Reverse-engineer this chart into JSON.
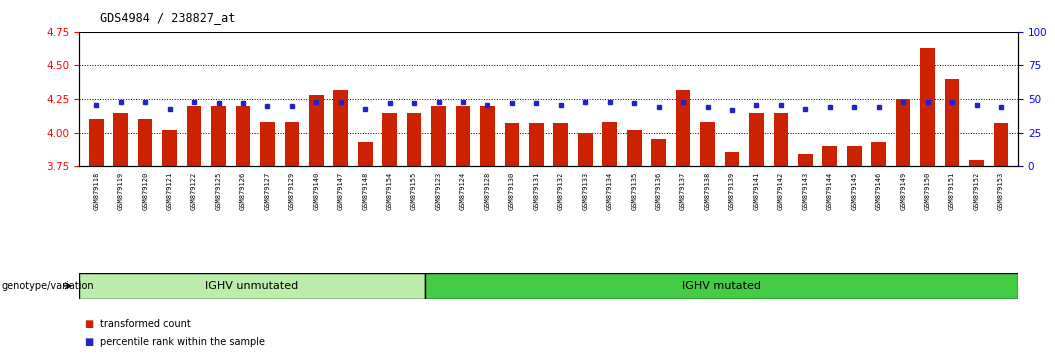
{
  "title": "GDS4984 / 238827_at",
  "samples": [
    "GSM879118",
    "GSM879119",
    "GSM879120",
    "GSM879121",
    "GSM879122",
    "GSM879125",
    "GSM879126",
    "GSM879127",
    "GSM879129",
    "GSM879140",
    "GSM879147",
    "GSM879148",
    "GSM879154",
    "GSM879155",
    "GSM879123",
    "GSM879124",
    "GSM879128",
    "GSM879130",
    "GSM879131",
    "GSM879132",
    "GSM879133",
    "GSM879134",
    "GSM879135",
    "GSM879136",
    "GSM879137",
    "GSM879138",
    "GSM879139",
    "GSM879141",
    "GSM879142",
    "GSM879143",
    "GSM879144",
    "GSM879145",
    "GSM879146",
    "GSM879149",
    "GSM879150",
    "GSM879151",
    "GSM879152",
    "GSM879153"
  ],
  "bar_values": [
    4.1,
    4.15,
    4.1,
    4.02,
    4.2,
    4.2,
    4.2,
    4.08,
    4.08,
    4.28,
    4.32,
    3.93,
    4.15,
    4.15,
    4.2,
    4.2,
    4.2,
    4.07,
    4.07,
    4.07,
    4.0,
    4.08,
    4.02,
    3.95,
    4.32,
    4.08,
    3.86,
    4.15,
    4.15,
    3.84,
    3.9,
    3.9,
    3.93,
    4.25,
    4.63,
    4.4,
    3.8,
    4.07
  ],
  "dot_values": [
    46,
    48,
    48,
    43,
    48,
    47,
    47,
    45,
    45,
    48,
    48,
    43,
    47,
    47,
    48,
    48,
    46,
    47,
    47,
    46,
    48,
    48,
    47,
    44,
    48,
    44,
    42,
    46,
    46,
    43,
    44,
    44,
    44,
    48,
    48,
    48,
    46,
    44
  ],
  "group1_count": 14,
  "group1_label": "IGHV unmutated",
  "group2_label": "IGHV mutated",
  "ylim_left": [
    3.75,
    4.75
  ],
  "ylim_right": [
    0,
    100
  ],
  "yticks_left": [
    3.75,
    4.0,
    4.25,
    4.5,
    4.75
  ],
  "yticks_right": [
    0,
    25,
    50,
    75,
    100
  ],
  "bar_color": "#cc2200",
  "dot_color": "#2222cc",
  "group1_color": "#bbeeaa",
  "group2_color": "#44cc44",
  "group_label_text": "genotype/variation",
  "legend_bar_label": "transformed count",
  "legend_dot_label": "percentile rank within the sample",
  "tick_bg_color": "#d8d8d8",
  "plot_bg_color": "#ffffff"
}
